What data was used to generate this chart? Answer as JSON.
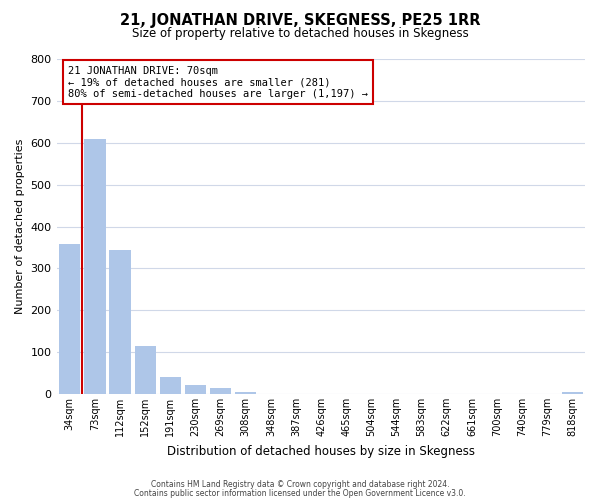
{
  "title": "21, JONATHAN DRIVE, SKEGNESS, PE25 1RR",
  "subtitle": "Size of property relative to detached houses in Skegness",
  "xlabel": "Distribution of detached houses by size in Skegness",
  "ylabel": "Number of detached properties",
  "bar_labels": [
    "34sqm",
    "73sqm",
    "112sqm",
    "152sqm",
    "191sqm",
    "230sqm",
    "269sqm",
    "308sqm",
    "348sqm",
    "387sqm",
    "426sqm",
    "465sqm",
    "504sqm",
    "544sqm",
    "583sqm",
    "622sqm",
    "661sqm",
    "700sqm",
    "740sqm",
    "779sqm",
    "818sqm"
  ],
  "bar_values": [
    358,
    610,
    345,
    115,
    40,
    22,
    14,
    5,
    0,
    0,
    0,
    0,
    0,
    0,
    0,
    0,
    0,
    0,
    0,
    0,
    5
  ],
  "bar_color": "#aec6e8",
  "highlight_line_color": "#cc0000",
  "ylim": [
    0,
    800
  ],
  "yticks": [
    0,
    100,
    200,
    300,
    400,
    500,
    600,
    700,
    800
  ],
  "annotation_title": "21 JONATHAN DRIVE: 70sqm",
  "annotation_line1": "← 19% of detached houses are smaller (281)",
  "annotation_line2": "80% of semi-detached houses are larger (1,197) →",
  "footer_line1": "Contains HM Land Registry data © Crown copyright and database right 2024.",
  "footer_line2": "Contains public sector information licensed under the Open Government Licence v3.0.",
  "bg_color": "#ffffff",
  "grid_color": "#d0d8e8"
}
